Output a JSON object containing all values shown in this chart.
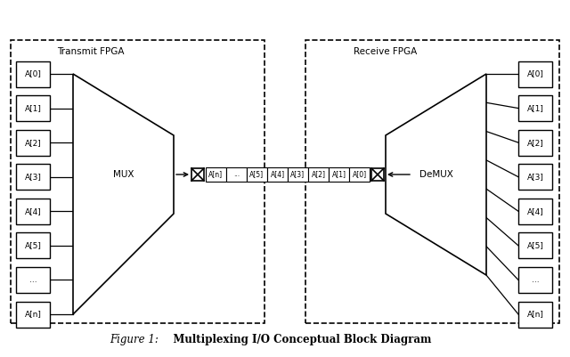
{
  "fig_width": 6.4,
  "fig_height": 4.01,
  "bg_color": "#ffffff",
  "title_text": "Figure 1:",
  "title_bold": "   Multiplexing I/O Conceptual Block Diagram",
  "left_label": "Transmit FPGA",
  "right_label": "Receive FPGA",
  "mux_label": "MUX",
  "demux_label": "DeMUX",
  "io_labels": [
    "A[0]",
    "A[1]",
    "A[2]",
    "A[3]",
    "A[4]",
    "A[5]",
    "...",
    "A[n]"
  ],
  "bus_labels": [
    "A[n]",
    "...",
    "A[5]",
    "A[4]",
    "A[3]",
    "A[2]",
    "A[1]",
    "A[0]"
  ],
  "font_size_label": 6.5,
  "font_size_fpga": 7.5,
  "font_size_mux": 7.5,
  "font_size_bus": 5.5,
  "font_size_caption_italic": 8.5,
  "font_size_caption_bold": 8.5
}
